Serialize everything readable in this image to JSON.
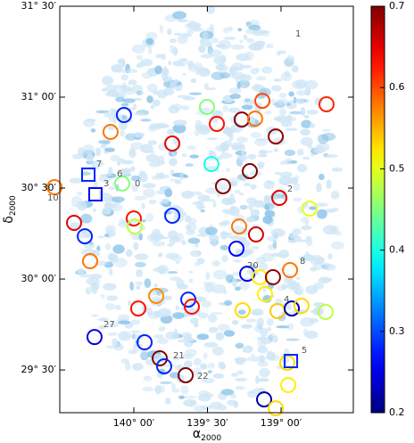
{
  "chart_data": {
    "type": "scatter",
    "xlabel": {
      "symbol": "α",
      "subscript": "2000"
    },
    "ylabel": {
      "symbol": "δ",
      "subscript": "2000"
    },
    "xlim": [
      140.503,
      138.509
    ],
    "ylim": [
      29.265,
      31.5
    ],
    "xticks": [
      {
        "value": 140,
        "label": "140° 00′"
      },
      {
        "value": 139.5,
        "label": "139° 30′"
      },
      {
        "value": 139,
        "label": "139° 00′"
      }
    ],
    "yticks": [
      {
        "value": 29.5,
        "label": "29° 30′"
      },
      {
        "value": 30,
        "label": "30° 00′"
      },
      {
        "value": 30.5,
        "label": "30° 30′"
      },
      {
        "value": 31,
        "label": "31° 00′"
      },
      {
        "value": 31.5,
        "label": "31° 30′"
      }
    ],
    "colorbar": {
      "colormap": "jet",
      "clim": [
        0.2,
        0.7
      ],
      "ticks": [
        0.2,
        0.3,
        0.4,
        0.5,
        0.6,
        0.7
      ]
    },
    "series": [
      {
        "marker": "circle",
        "x": [
          139.127,
          138.691,
          140.067,
          139.503,
          139.267,
          139.176,
          139.436,
          140.158,
          139.036,
          139.739,
          139.473,
          139.212,
          140.079,
          140.539,
          139.394,
          139.012,
          138.806,
          140.406,
          140.0,
          139.994,
          139.739,
          139.285,
          139.17,
          140.333,
          139.303,
          140.297,
          139.23,
          139.145,
          138.939,
          139.055,
          139.109,
          139.848,
          139.63,
          139.97,
          139.606,
          139.261,
          139.024,
          138.927,
          138.861,
          138.697,
          140.267,
          139.927,
          139.824,
          139.794,
          139.648,
          138.958,
          138.951,
          139.115,
          139.036
        ],
        "y": [
          30.98,
          30.961,
          30.902,
          30.946,
          30.877,
          30.882,
          30.853,
          30.809,
          30.784,
          30.745,
          30.632,
          30.593,
          30.525,
          30.505,
          30.51,
          30.446,
          30.387,
          30.309,
          30.333,
          30.289,
          30.348,
          30.289,
          30.245,
          30.235,
          30.167,
          30.098,
          30.029,
          30.01,
          30.049,
          30.01,
          29.917,
          29.907,
          29.887,
          29.838,
          29.848,
          29.828,
          29.824,
          29.838,
          29.853,
          29.819,
          29.681,
          29.652,
          29.564,
          29.52,
          29.471,
          29.539,
          29.417,
          29.338,
          29.289
        ],
        "values": [
          0.6,
          0.62,
          0.28,
          0.45,
          0.7,
          0.58,
          0.63,
          0.58,
          0.69,
          0.65,
          0.4,
          0.7,
          0.45,
          0.58,
          0.7,
          0.65,
          0.5,
          0.65,
          0.63,
          0.48,
          0.28,
          0.58,
          0.66,
          0.28,
          0.26,
          0.58,
          0.25,
          0.52,
          0.58,
          0.69,
          0.52,
          0.57,
          0.28,
          0.63,
          0.63,
          0.53,
          0.54,
          0.22,
          0.53,
          0.48,
          0.25,
          0.28,
          0.7,
          0.28,
          0.7,
          0.53,
          0.52,
          0.22,
          0.53
        ]
      },
      {
        "marker": "square",
        "x": [
          140.309,
          140.261,
          138.933
        ],
        "y": [
          30.574,
          30.466,
          29.549
        ],
        "values": [
          0.28,
          0.26,
          0.28
        ]
      }
    ],
    "annotations": [
      {
        "text": "1",
        "x": 138.903,
        "y": 31.348
      },
      {
        "text": "2",
        "x": 138.958,
        "y": 30.495
      },
      {
        "text": "3",
        "x": 140.206,
        "y": 30.525
      },
      {
        "text": "4",
        "x": 138.982,
        "y": 29.887
      },
      {
        "text": "5",
        "x": 138.861,
        "y": 29.608
      },
      {
        "text": "6",
        "x": 140.115,
        "y": 30.578
      },
      {
        "text": "7",
        "x": 140.255,
        "y": 30.632
      },
      {
        "text": "8",
        "x": 138.873,
        "y": 30.098
      },
      {
        "text": "0",
        "x": 139.994,
        "y": 30.525
      },
      {
        "text": "10",
        "x": 140.588,
        "y": 30.446
      },
      {
        "text": "20",
        "x": 139.23,
        "y": 30.074
      },
      {
        "text": "21",
        "x": 139.733,
        "y": 29.578
      },
      {
        "text": "22",
        "x": 139.57,
        "y": 29.466
      },
      {
        "text": "27",
        "x": 140.206,
        "y": 29.75
      }
    ]
  }
}
